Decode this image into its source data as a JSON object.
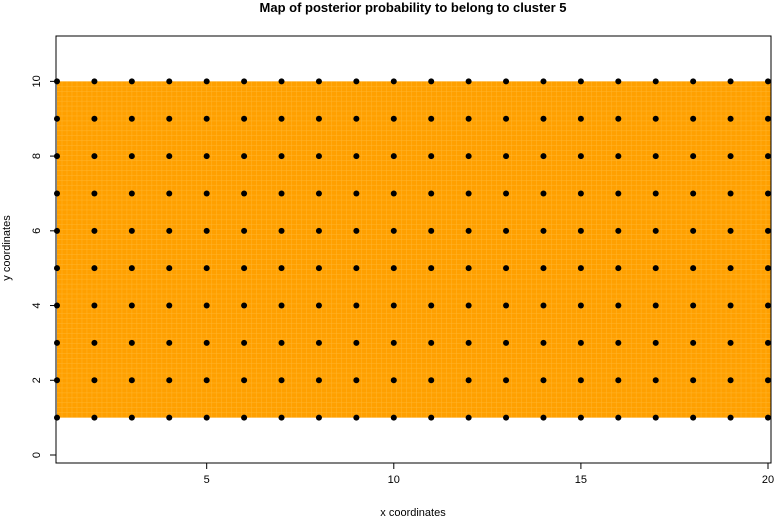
{
  "chart_data": {
    "type": "scatter",
    "title": "Map of posterior probability to belong to cluster  5",
    "xlabel": "x coordinates",
    "ylabel": "y coordinates",
    "xlim": [
      1,
      20
    ],
    "ylim": [
      0,
      11
    ],
    "x_ticks": [
      "5",
      "10",
      "15",
      "20"
    ],
    "y_ticks": [
      "0",
      "2",
      "4",
      "6",
      "8",
      "10"
    ],
    "x_tick_values": [
      5,
      10,
      15,
      20
    ],
    "y_tick_values": [
      0,
      2,
      4,
      6,
      8,
      10
    ],
    "grid_x": [
      1,
      2,
      3,
      4,
      5,
      6,
      7,
      8,
      9,
      10,
      11,
      12,
      13,
      14,
      15,
      16,
      17,
      18,
      19,
      20
    ],
    "grid_y": [
      1,
      2,
      3,
      4,
      5,
      6,
      7,
      8,
      9,
      10
    ],
    "heatmap_region": {
      "x": [
        1,
        20
      ],
      "y": [
        1,
        10
      ]
    },
    "colors": {
      "heatmap_fill": "#ffa000",
      "heatmap_grid": "#ffbe40",
      "points": "#000000",
      "frame": "#000000"
    },
    "grid": false,
    "legend": "none"
  }
}
